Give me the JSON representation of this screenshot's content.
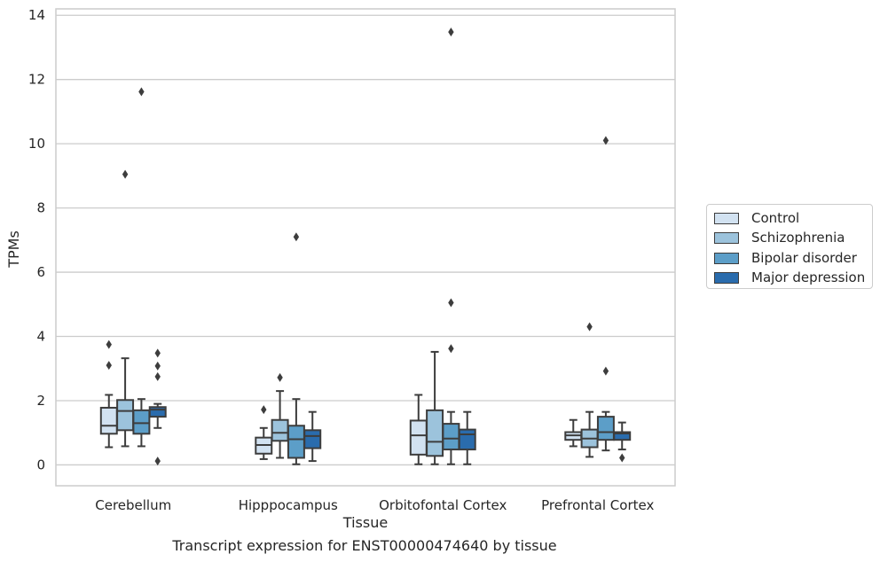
{
  "chart_data": {
    "type": "box",
    "title": "Transcript expression for ENST00000474640 by tissue",
    "xlabel": "Tissue",
    "ylabel": "TPMs",
    "ylim": [
      -0.65,
      14.2
    ],
    "yticks": [
      0,
      2,
      4,
      6,
      8,
      10,
      12,
      14
    ],
    "grid": "horizontal",
    "legend_position": "right",
    "categories": [
      "Cerebellum",
      "Hipppocampus",
      "Orbitofontal Cortex",
      "Prefrontal Cortex"
    ],
    "series": [
      {
        "name": "Control",
        "color": "#d2e2f1",
        "boxes": [
          {
            "whislo": 0.55,
            "q1": 0.97,
            "med": 1.22,
            "q3": 1.78,
            "whishi": 2.18,
            "fliers": [
              3.75,
              3.1
            ]
          },
          {
            "whislo": 0.18,
            "q1": 0.35,
            "med": 0.62,
            "q3": 0.85,
            "whishi": 1.15,
            "fliers": [
              1.72
            ]
          },
          {
            "whislo": 0.02,
            "q1": 0.32,
            "med": 0.92,
            "q3": 1.38,
            "whishi": 2.18,
            "fliers": []
          },
          {
            "whislo": 0.58,
            "q1": 0.78,
            "med": 0.92,
            "q3": 1.02,
            "whishi": 1.4,
            "fliers": []
          }
        ]
      },
      {
        "name": "Schizophrenia",
        "color": "#9cc3dc",
        "boxes": [
          {
            "whislo": 0.58,
            "q1": 1.08,
            "med": 1.68,
            "q3": 2.02,
            "whishi": 3.32,
            "fliers": [
              9.05
            ]
          },
          {
            "whislo": 0.22,
            "q1": 0.75,
            "med": 1.0,
            "q3": 1.4,
            "whishi": 2.3,
            "fliers": [
              2.72
            ]
          },
          {
            "whislo": 0.02,
            "q1": 0.28,
            "med": 0.72,
            "q3": 1.7,
            "whishi": 3.52,
            "fliers": []
          },
          {
            "whislo": 0.25,
            "q1": 0.55,
            "med": 0.82,
            "q3": 1.1,
            "whishi": 1.65,
            "fliers": [
              4.3
            ]
          }
        ]
      },
      {
        "name": "Bipolar disorder",
        "color": "#5c9ec8",
        "boxes": [
          {
            "whislo": 0.58,
            "q1": 0.97,
            "med": 1.3,
            "q3": 1.7,
            "whishi": 2.05,
            "fliers": [
              11.62
            ]
          },
          {
            "whislo": 0.02,
            "q1": 0.22,
            "med": 0.8,
            "q3": 1.22,
            "whishi": 2.05,
            "fliers": [
              7.1
            ]
          },
          {
            "whislo": 0.02,
            "q1": 0.48,
            "med": 0.82,
            "q3": 1.28,
            "whishi": 1.65,
            "fliers": [
              13.48,
              5.05,
              3.62
            ]
          },
          {
            "whislo": 0.45,
            "q1": 0.78,
            "med": 1.02,
            "q3": 1.5,
            "whishi": 1.65,
            "fliers": [
              10.1,
              2.92
            ]
          }
        ]
      },
      {
        "name": "Major depression",
        "color": "#2a6cad",
        "boxes": [
          {
            "whislo": 1.15,
            "q1": 1.5,
            "med": 1.72,
            "q3": 1.8,
            "whishi": 1.9,
            "fliers": [
              3.48,
              3.08,
              2.75,
              0.12
            ]
          },
          {
            "whislo": 0.12,
            "q1": 0.52,
            "med": 0.9,
            "q3": 1.08,
            "whishi": 1.65,
            "fliers": []
          },
          {
            "whislo": 0.02,
            "q1": 0.48,
            "med": 0.95,
            "q3": 1.1,
            "whishi": 1.65,
            "fliers": []
          },
          {
            "whislo": 0.48,
            "q1": 0.78,
            "med": 0.98,
            "q3": 1.02,
            "whishi": 1.32,
            "fliers": [
              0.22
            ]
          }
        ]
      }
    ]
  },
  "legend": {
    "items": [
      {
        "label": "Control",
        "color": "#d2e2f1"
      },
      {
        "label": "Schizophrenia",
        "color": "#9cc3dc"
      },
      {
        "label": "Bipolar disorder",
        "color": "#5c9ec8"
      },
      {
        "label": "Major depression",
        "color": "#2a6cad"
      }
    ]
  }
}
